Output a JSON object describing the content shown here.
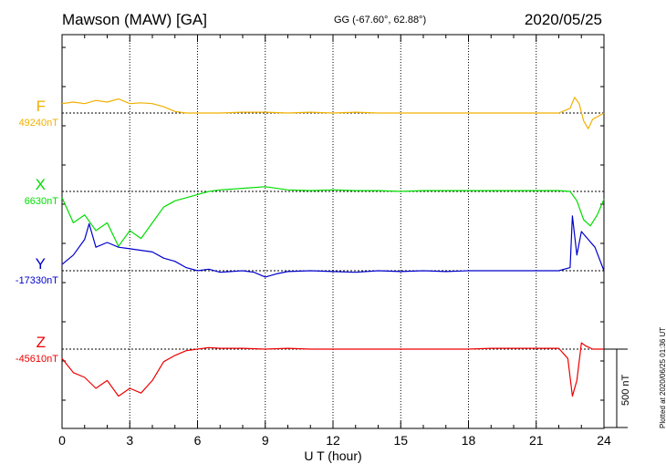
{
  "header": {
    "station": "Mawson (MAW)  [GA]",
    "coordinates": "GG (-67.60°,  62.88°)",
    "date": "2020/05/25"
  },
  "footer_note": "Plotted at 2020/06/25 01:36 UT",
  "colors": {
    "F": "#f0b000",
    "X": "#00dd00",
    "Y": "#0000cc",
    "Z": "#ee0000"
  },
  "chart_data": {
    "type": "line",
    "xlabel": "U T (hour)",
    "xlim": [
      0,
      24
    ],
    "xticks": [
      "0",
      "3",
      "6",
      "9",
      "12",
      "15",
      "18",
      "21",
      "24"
    ],
    "scale_bar": "500 nT",
    "series": [
      {
        "name": "F",
        "baseline_label": "49240nT",
        "x": [
          0,
          0.5,
          1,
          1.5,
          2,
          2.5,
          3,
          3.5,
          4,
          4.5,
          5,
          5.5,
          6,
          6.5,
          7,
          8,
          9,
          10,
          11,
          12,
          13,
          14,
          15,
          16,
          17,
          18,
          19,
          20,
          21,
          22,
          22.5,
          22.7,
          22.9,
          23.1,
          23.3,
          23.5,
          24
        ],
        "y": [
          60,
          70,
          60,
          80,
          70,
          90,
          60,
          65,
          60,
          40,
          10,
          0,
          0,
          0,
          0,
          5,
          5,
          0,
          5,
          0,
          5,
          0,
          0,
          0,
          0,
          0,
          0,
          0,
          0,
          0,
          30,
          100,
          60,
          -50,
          -100,
          -40,
          0
        ]
      },
      {
        "name": "X",
        "baseline_label": "6630nT",
        "x": [
          0,
          0.5,
          1,
          1.5,
          2,
          2.5,
          3,
          3.5,
          4,
          4.5,
          5,
          5.5,
          6,
          6.5,
          7,
          8,
          9,
          10,
          11,
          12,
          13,
          14,
          15,
          16,
          17,
          18,
          19,
          20,
          21,
          22,
          22.5,
          22.8,
          23.1,
          23.4,
          23.7,
          24
        ],
        "y": [
          -40,
          -200,
          -150,
          -250,
          -200,
          -350,
          -250,
          -300,
          -200,
          -100,
          -60,
          -40,
          -20,
          0,
          10,
          20,
          30,
          10,
          5,
          10,
          5,
          5,
          0,
          5,
          5,
          5,
          5,
          5,
          5,
          5,
          0,
          -60,
          -180,
          -220,
          -150,
          -50
        ]
      },
      {
        "name": "Y",
        "baseline_label": "-17330nT",
        "x": [
          0,
          0.5,
          1,
          1.2,
          1.5,
          2,
          2.5,
          3,
          3.5,
          4,
          4.5,
          5,
          5.5,
          6,
          6.5,
          7,
          8,
          8.5,
          9,
          9.5,
          10,
          11,
          12,
          13,
          14,
          15,
          16,
          17,
          18,
          19,
          20,
          21,
          22,
          22.5,
          22.6,
          22.8,
          23,
          23.3,
          23.6,
          24
        ],
        "y": [
          40,
          100,
          200,
          300,
          150,
          180,
          150,
          140,
          130,
          120,
          80,
          60,
          20,
          0,
          10,
          -10,
          0,
          -10,
          -40,
          -20,
          -5,
          0,
          -5,
          -10,
          0,
          -5,
          0,
          -5,
          0,
          0,
          0,
          0,
          0,
          20,
          350,
          100,
          250,
          200,
          150,
          0
        ]
      },
      {
        "name": "Z",
        "baseline_label": "-45610nT",
        "x": [
          0,
          0.5,
          1,
          1.5,
          2,
          2.5,
          3,
          3.5,
          4,
          4.5,
          5,
          5.5,
          6,
          6.5,
          7,
          8,
          9,
          10,
          11,
          12,
          13,
          14,
          15,
          16,
          17,
          18,
          19,
          20,
          21,
          22,
          22.4,
          22.6,
          22.8,
          23,
          23.2,
          23.5,
          24
        ],
        "y": [
          -60,
          -150,
          -180,
          -250,
          -200,
          -300,
          -250,
          -280,
          -200,
          -80,
          -40,
          -10,
          0,
          10,
          5,
          5,
          0,
          5,
          0,
          0,
          0,
          0,
          0,
          0,
          0,
          0,
          5,
          5,
          5,
          5,
          -60,
          -300,
          -200,
          40,
          20,
          0,
          0
        ]
      }
    ]
  }
}
